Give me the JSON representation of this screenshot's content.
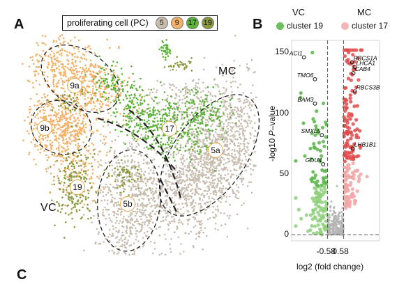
{
  "panels": {
    "a": "A",
    "b": "B",
    "c": "C"
  },
  "umap": {
    "legend_title": "proliferating cell (PC)",
    "legend_items": [
      {
        "label": "5",
        "color": "#c7bcae"
      },
      {
        "label": "9",
        "color": "#f3b16a"
      },
      {
        "label": "17",
        "color": "#5cb338"
      },
      {
        "label": "19",
        "color": "#8a9a3c"
      }
    ],
    "mc_label": "MC",
    "vc_label": "VC",
    "cluster_labels": [
      {
        "key": "9a",
        "text": "9a"
      },
      {
        "key": "9b",
        "text": "9b"
      },
      {
        "key": "17",
        "text": "17"
      },
      {
        "key": "5a",
        "text": "5a"
      },
      {
        "key": "19",
        "text": "19"
      },
      {
        "key": "5b",
        "text": "5b"
      }
    ],
    "colors": {
      "c5": "#c7bcae",
      "c9": "#f3b16a",
      "c17": "#5cb338",
      "c19": "#8a9a3c"
    }
  },
  "volcano": {
    "header_left": "VC",
    "header_right": "MC",
    "legend_left": "cluster 19",
    "legend_right": "cluster 17",
    "color_left": "#6cbf5c",
    "color_right": "#f4b7b7",
    "ylabel_prefix": "-log10 ",
    "ylabel_italic": "P",
    "ylabel_suffix": "–value",
    "xlabel": "log2 (fold change)"
  },
  "chart_data": {
    "type": "scatter",
    "title": "",
    "xlabel": "log2 (fold change)",
    "ylabel": "-log10 P–value",
    "x_ticks": [
      "-0.58",
      "0.58"
    ],
    "y_ticks": [
      0,
      50,
      100,
      150
    ],
    "ylim": [
      0,
      160
    ],
    "thresholds_x": [
      -0.58,
      0.58
    ],
    "series": [
      {
        "name": "cluster 19",
        "color": "#6cbf5c"
      },
      {
        "name": "cluster 17",
        "color": "#e05a5a"
      }
    ],
    "labeled_genes": [
      {
        "gene": "ACI1",
        "x": -2.3,
        "y": 146
      },
      {
        "gene": "TMO6",
        "x": -1.5,
        "y": 128
      },
      {
        "gene": "BAM3",
        "x": -1.5,
        "y": 108
      },
      {
        "gene": "SMXL5",
        "x": -1.0,
        "y": 82
      },
      {
        "gene": "GDU4",
        "x": -0.9,
        "y": 58
      },
      {
        "gene": "RBCS1A",
        "x": 1.2,
        "y": 142
      },
      {
        "gene": "LHCA1",
        "x": 1.4,
        "y": 138
      },
      {
        "gene": "CAB4",
        "x": 1.3,
        "y": 133
      },
      {
        "gene": "RBCS3B",
        "x": 1.4,
        "y": 118
      },
      {
        "gene": "LHB1B1",
        "x": 1.25,
        "y": 71
      }
    ]
  }
}
